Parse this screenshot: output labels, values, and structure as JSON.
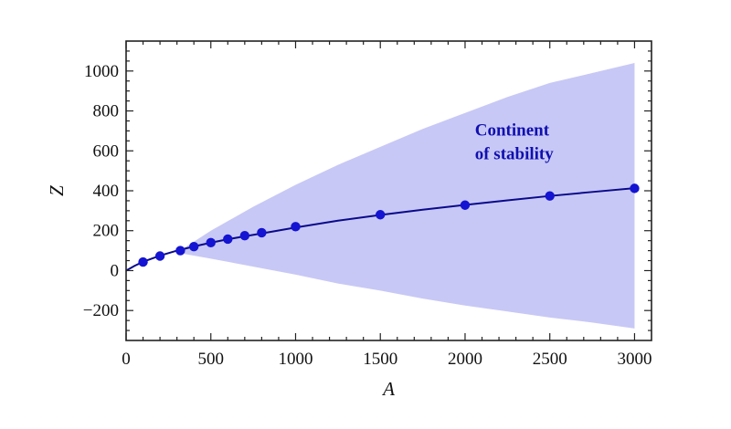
{
  "chart_data": {
    "type": "scatter",
    "title": "",
    "xlabel": "A",
    "ylabel": "Z",
    "xlim": [
      0,
      3100
    ],
    "ylim": [
      -350,
      1150
    ],
    "xticks": [
      0,
      500,
      1000,
      1500,
      2000,
      2500,
      3000
    ],
    "yticks": [
      -200,
      0,
      200,
      400,
      600,
      800,
      1000
    ],
    "xtick_labels": [
      "0",
      "500",
      "1000",
      "1500",
      "2000",
      "2500",
      "3000"
    ],
    "ytick_labels": [
      "−200",
      "0",
      "200",
      "400",
      "600",
      "800",
      "1000"
    ],
    "grid": false,
    "annotation": {
      "lines": [
        "Continent",
        "of stability"
      ],
      "x": 2290,
      "y": 640
    },
    "band": {
      "x": [
        300,
        500,
        750,
        1000,
        1250,
        1500,
        1750,
        2000,
        2250,
        2500,
        2750,
        3000
      ],
      "upper": [
        90,
        200,
        320,
        430,
        530,
        620,
        710,
        790,
        870,
        940,
        990,
        1040
      ],
      "lower": [
        90,
        60,
        20,
        -20,
        -65,
        -100,
        -140,
        -175,
        -205,
        -235,
        -260,
        -290
      ]
    },
    "curve": {
      "x": [
        0,
        50,
        100,
        200,
        300,
        400,
        500,
        600,
        700,
        800,
        1000,
        1250,
        1500,
        1750,
        2000,
        2250,
        2500,
        2750,
        3000
      ],
      "y": [
        0,
        24,
        44,
        75,
        100,
        121,
        140,
        157,
        172,
        186,
        216,
        250,
        279,
        305,
        329,
        352,
        374,
        394,
        413
      ]
    },
    "points": {
      "x": [
        100,
        200,
        320,
        400,
        500,
        600,
        700,
        800,
        1000,
        1500,
        2000,
        2500,
        3000
      ],
      "y": [
        43,
        73,
        100,
        120,
        140,
        158,
        175,
        190,
        220,
        280,
        328,
        374,
        412
      ]
    },
    "colors": {
      "band": "#c8c8f6",
      "curve": "#0a0a8a",
      "points": "#1414d2",
      "annotation": "#1010b0"
    }
  }
}
